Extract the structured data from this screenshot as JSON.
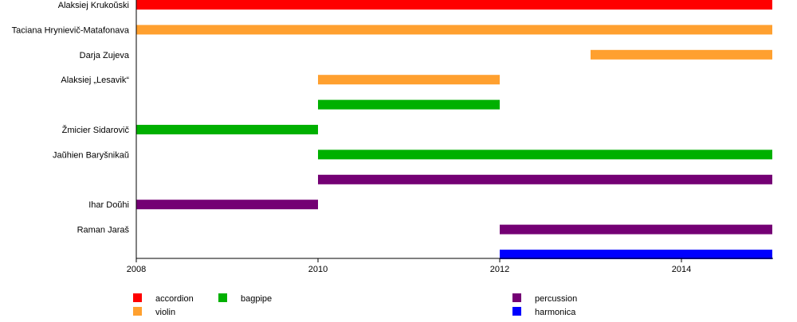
{
  "chart_data": {
    "type": "timeline",
    "xlim": [
      2008,
      2015
    ],
    "x_ticks": [
      "2008",
      "2010",
      "2012",
      "2014"
    ],
    "rows": [
      {
        "label": "Alaksiej Krukoŭski",
        "bars": [
          {
            "instrument": "accordion",
            "start": 2008,
            "end": 2015
          }
        ]
      },
      {
        "label": "Taciana Hrynievič-Matafonava",
        "bars": [
          {
            "instrument": "violin",
            "start": 2008,
            "end": 2015
          }
        ]
      },
      {
        "label": "Darja Zujeva",
        "bars": [
          {
            "instrument": "violin",
            "start": 2013,
            "end": 2015
          }
        ]
      },
      {
        "label": "Alaksiej „Lesavik“",
        "bars": [
          {
            "instrument": "violin",
            "start": 2010,
            "end": 2012
          }
        ]
      },
      {
        "label": "",
        "bars": [
          {
            "instrument": "bagpipe",
            "start": 2010,
            "end": 2012
          }
        ]
      },
      {
        "label": "Žmicier Sidarovič",
        "bars": [
          {
            "instrument": "bagpipe",
            "start": 2008,
            "end": 2010
          }
        ]
      },
      {
        "label": "Jaŭhien Baryšnikaŭ",
        "bars": [
          {
            "instrument": "bagpipe",
            "start": 2010,
            "end": 2015
          }
        ]
      },
      {
        "label": "",
        "bars": [
          {
            "instrument": "percussion",
            "start": 2010,
            "end": 2015
          }
        ]
      },
      {
        "label": "Ihar Doŭhi",
        "bars": [
          {
            "instrument": "percussion",
            "start": 2008,
            "end": 2010
          }
        ]
      },
      {
        "label": "Raman Jaraš",
        "bars": [
          {
            "instrument": "percussion",
            "start": 2012,
            "end": 2015
          }
        ]
      },
      {
        "label": "",
        "bars": [
          {
            "instrument": "harmonica",
            "start": 2012,
            "end": 2015
          }
        ]
      }
    ],
    "legend": [
      {
        "name": "accordion",
        "color": "#ff0000"
      },
      {
        "name": "violin",
        "color": "#ffa02f"
      },
      {
        "name": "bagpipe",
        "color": "#00b000"
      },
      {
        "name": "percussion",
        "color": "#740074"
      },
      {
        "name": "harmonica",
        "color": "#0000ff"
      }
    ],
    "legend_placement": "bottom",
    "grid": false
  }
}
